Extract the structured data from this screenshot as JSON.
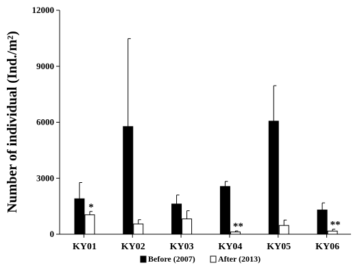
{
  "chart_data": {
    "type": "bar",
    "title": "",
    "xlabel": "",
    "ylabel": "Number of individual (Ind./m²)",
    "ylim": [
      0,
      12000
    ],
    "yticks": [
      "0",
      "3000",
      "6000",
      "9000",
      "12000"
    ],
    "categories": [
      "KY01",
      "KY02",
      "KY03",
      "KY04",
      "KY05",
      "KY06"
    ],
    "series": [
      {
        "name": "Before (2007)",
        "color": "#000000",
        "fill": "solid",
        "values": [
          1900,
          5770,
          1620,
          2560,
          6060,
          1300
        ],
        "errors": [
          870,
          4710,
          480,
          270,
          1900,
          380
        ]
      },
      {
        "name": "After (2013)",
        "color": "#ffffff",
        "fill": "hollow",
        "values": [
          1040,
          550,
          820,
          120,
          470,
          170
        ],
        "errors": [
          180,
          230,
          440,
          60,
          290,
          100
        ]
      }
    ],
    "annotations": [
      "*",
      "",
      "",
      "**",
      "",
      "**"
    ],
    "legend_position": "bottom",
    "grid": false
  }
}
